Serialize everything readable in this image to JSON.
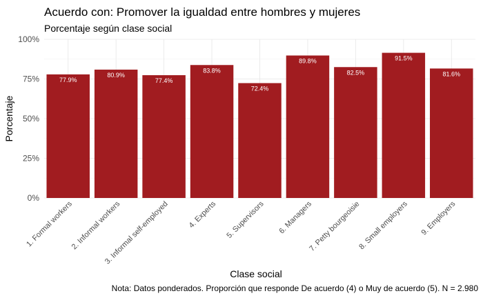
{
  "chart_data": {
    "type": "bar",
    "title": "Acuerdo con: Promover la igualdad entre hombres y mujeres",
    "subtitle": "Porcentaje según clase social",
    "xlabel": "Clase social",
    "ylabel": "Porcentaje",
    "caption": "Nota: Datos ponderados. Proporción que responde De acuerdo (4) o Muy de acuerdo (5). N = 2.980",
    "categories": [
      "1. Formal workers",
      "2. Informal workers",
      "3. Informal self-employed",
      "4. Experts",
      "5. Supervisors",
      "6. Managers",
      "7. Petty bourgeoisie",
      "8. Small employers",
      "9. Employers"
    ],
    "values": [
      77.9,
      80.9,
      77.4,
      83.8,
      72.4,
      89.8,
      82.5,
      91.5,
      81.6
    ],
    "value_labels": [
      "77.9%",
      "80.9%",
      "77.4%",
      "83.8%",
      "72.4%",
      "89.8%",
      "82.5%",
      "91.5%",
      "81.6%"
    ],
    "ylim": [
      0,
      100
    ],
    "yticks": [
      0,
      25,
      50,
      75,
      100
    ],
    "ytick_labels": [
      "0%",
      "25%",
      "50%",
      "75%",
      "100%"
    ],
    "bar_color": "#A11C20",
    "grid": true,
    "legend": "none"
  }
}
